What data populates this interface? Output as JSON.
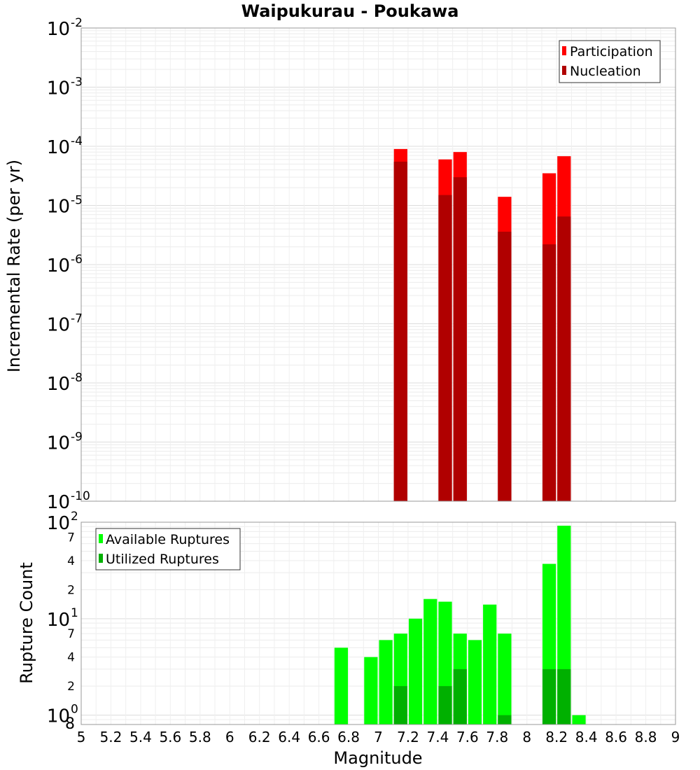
{
  "chart_data": [
    {
      "type": "bar",
      "title": "Waipukurau - Poukawa",
      "xlabel": "",
      "ylabel": "Incremental Rate (per yr)",
      "xlim": [
        5,
        9
      ],
      "ylim": [
        1e-10,
        0.01
      ],
      "yscale": "log",
      "y_tick_exponents": [
        -10,
        -9,
        -8,
        -7,
        -6,
        -5,
        -4,
        -3,
        -2
      ],
      "grid": true,
      "legend_position": "top-right",
      "bin_width": 0.1,
      "series": [
        {
          "name": "Participation",
          "color": "#ff0000",
          "points": [
            {
              "x": 7.15,
              "y": 9e-05
            },
            {
              "x": 7.45,
              "y": 6e-05
            },
            {
              "x": 7.55,
              "y": 8e-05
            },
            {
              "x": 7.85,
              "y": 1.4e-05
            },
            {
              "x": 8.15,
              "y": 3.5e-05
            },
            {
              "x": 8.25,
              "y": 6.8e-05
            }
          ]
        },
        {
          "name": "Nucleation",
          "color": "#b00000",
          "points": [
            {
              "x": 7.15,
              "y": 5.5e-05
            },
            {
              "x": 7.45,
              "y": 1.5e-05
            },
            {
              "x": 7.55,
              "y": 3e-05
            },
            {
              "x": 7.85,
              "y": 3.6e-06
            },
            {
              "x": 8.15,
              "y": 2.2e-06
            },
            {
              "x": 8.25,
              "y": 6.5e-06
            }
          ]
        }
      ]
    },
    {
      "type": "bar",
      "title": "",
      "xlabel": "Magnitude",
      "ylabel": "Rupture Count",
      "xlim": [
        5,
        9
      ],
      "ylim": [
        0.8,
        100
      ],
      "yscale": "log",
      "x_ticks": [
        "5",
        "5.2",
        "5.4",
        "5.6",
        "5.8",
        "6",
        "6.2",
        "6.4",
        "6.6",
        "6.8",
        "7",
        "7.2",
        "7.4",
        "7.6",
        "7.8",
        "8",
        "8.2",
        "8.4",
        "8.6",
        "8.8",
        "9"
      ],
      "y_major_ticks": [
        {
          "base": "10",
          "exp": "0",
          "value": 1
        },
        {
          "base": "10",
          "exp": "1",
          "value": 10
        },
        {
          "base": "10",
          "exp": "2",
          "value": 100
        }
      ],
      "y_minor_ticks": [
        {
          "label": "8",
          "value": 0.8
        },
        {
          "label": "2",
          "value": 2
        },
        {
          "label": "4",
          "value": 4
        },
        {
          "label": "7",
          "value": 7
        },
        {
          "label": "2",
          "value": 20
        },
        {
          "label": "4",
          "value": 40
        },
        {
          "label": "7",
          "value": 70
        }
      ],
      "grid": true,
      "legend_position": "top-left",
      "bin_width": 0.1,
      "series": [
        {
          "name": "Available Ruptures",
          "color": "#00ff00",
          "points": [
            {
              "x": 6.75,
              "y": 5
            },
            {
              "x": 6.95,
              "y": 4
            },
            {
              "x": 7.05,
              "y": 6
            },
            {
              "x": 7.15,
              "y": 7
            },
            {
              "x": 7.25,
              "y": 10
            },
            {
              "x": 7.35,
              "y": 16
            },
            {
              "x": 7.45,
              "y": 15
            },
            {
              "x": 7.55,
              "y": 7
            },
            {
              "x": 7.65,
              "y": 6
            },
            {
              "x": 7.75,
              "y": 14
            },
            {
              "x": 7.85,
              "y": 7
            },
            {
              "x": 8.15,
              "y": 37
            },
            {
              "x": 8.25,
              "y": 92
            },
            {
              "x": 8.35,
              "y": 1
            }
          ]
        },
        {
          "name": "Utilized Ruptures",
          "color": "#00b000",
          "points": [
            {
              "x": 7.15,
              "y": 2
            },
            {
              "x": 7.45,
              "y": 2
            },
            {
              "x": 7.55,
              "y": 3
            },
            {
              "x": 7.85,
              "y": 1
            },
            {
              "x": 8.15,
              "y": 3
            },
            {
              "x": 8.25,
              "y": 3
            }
          ]
        }
      ]
    }
  ]
}
